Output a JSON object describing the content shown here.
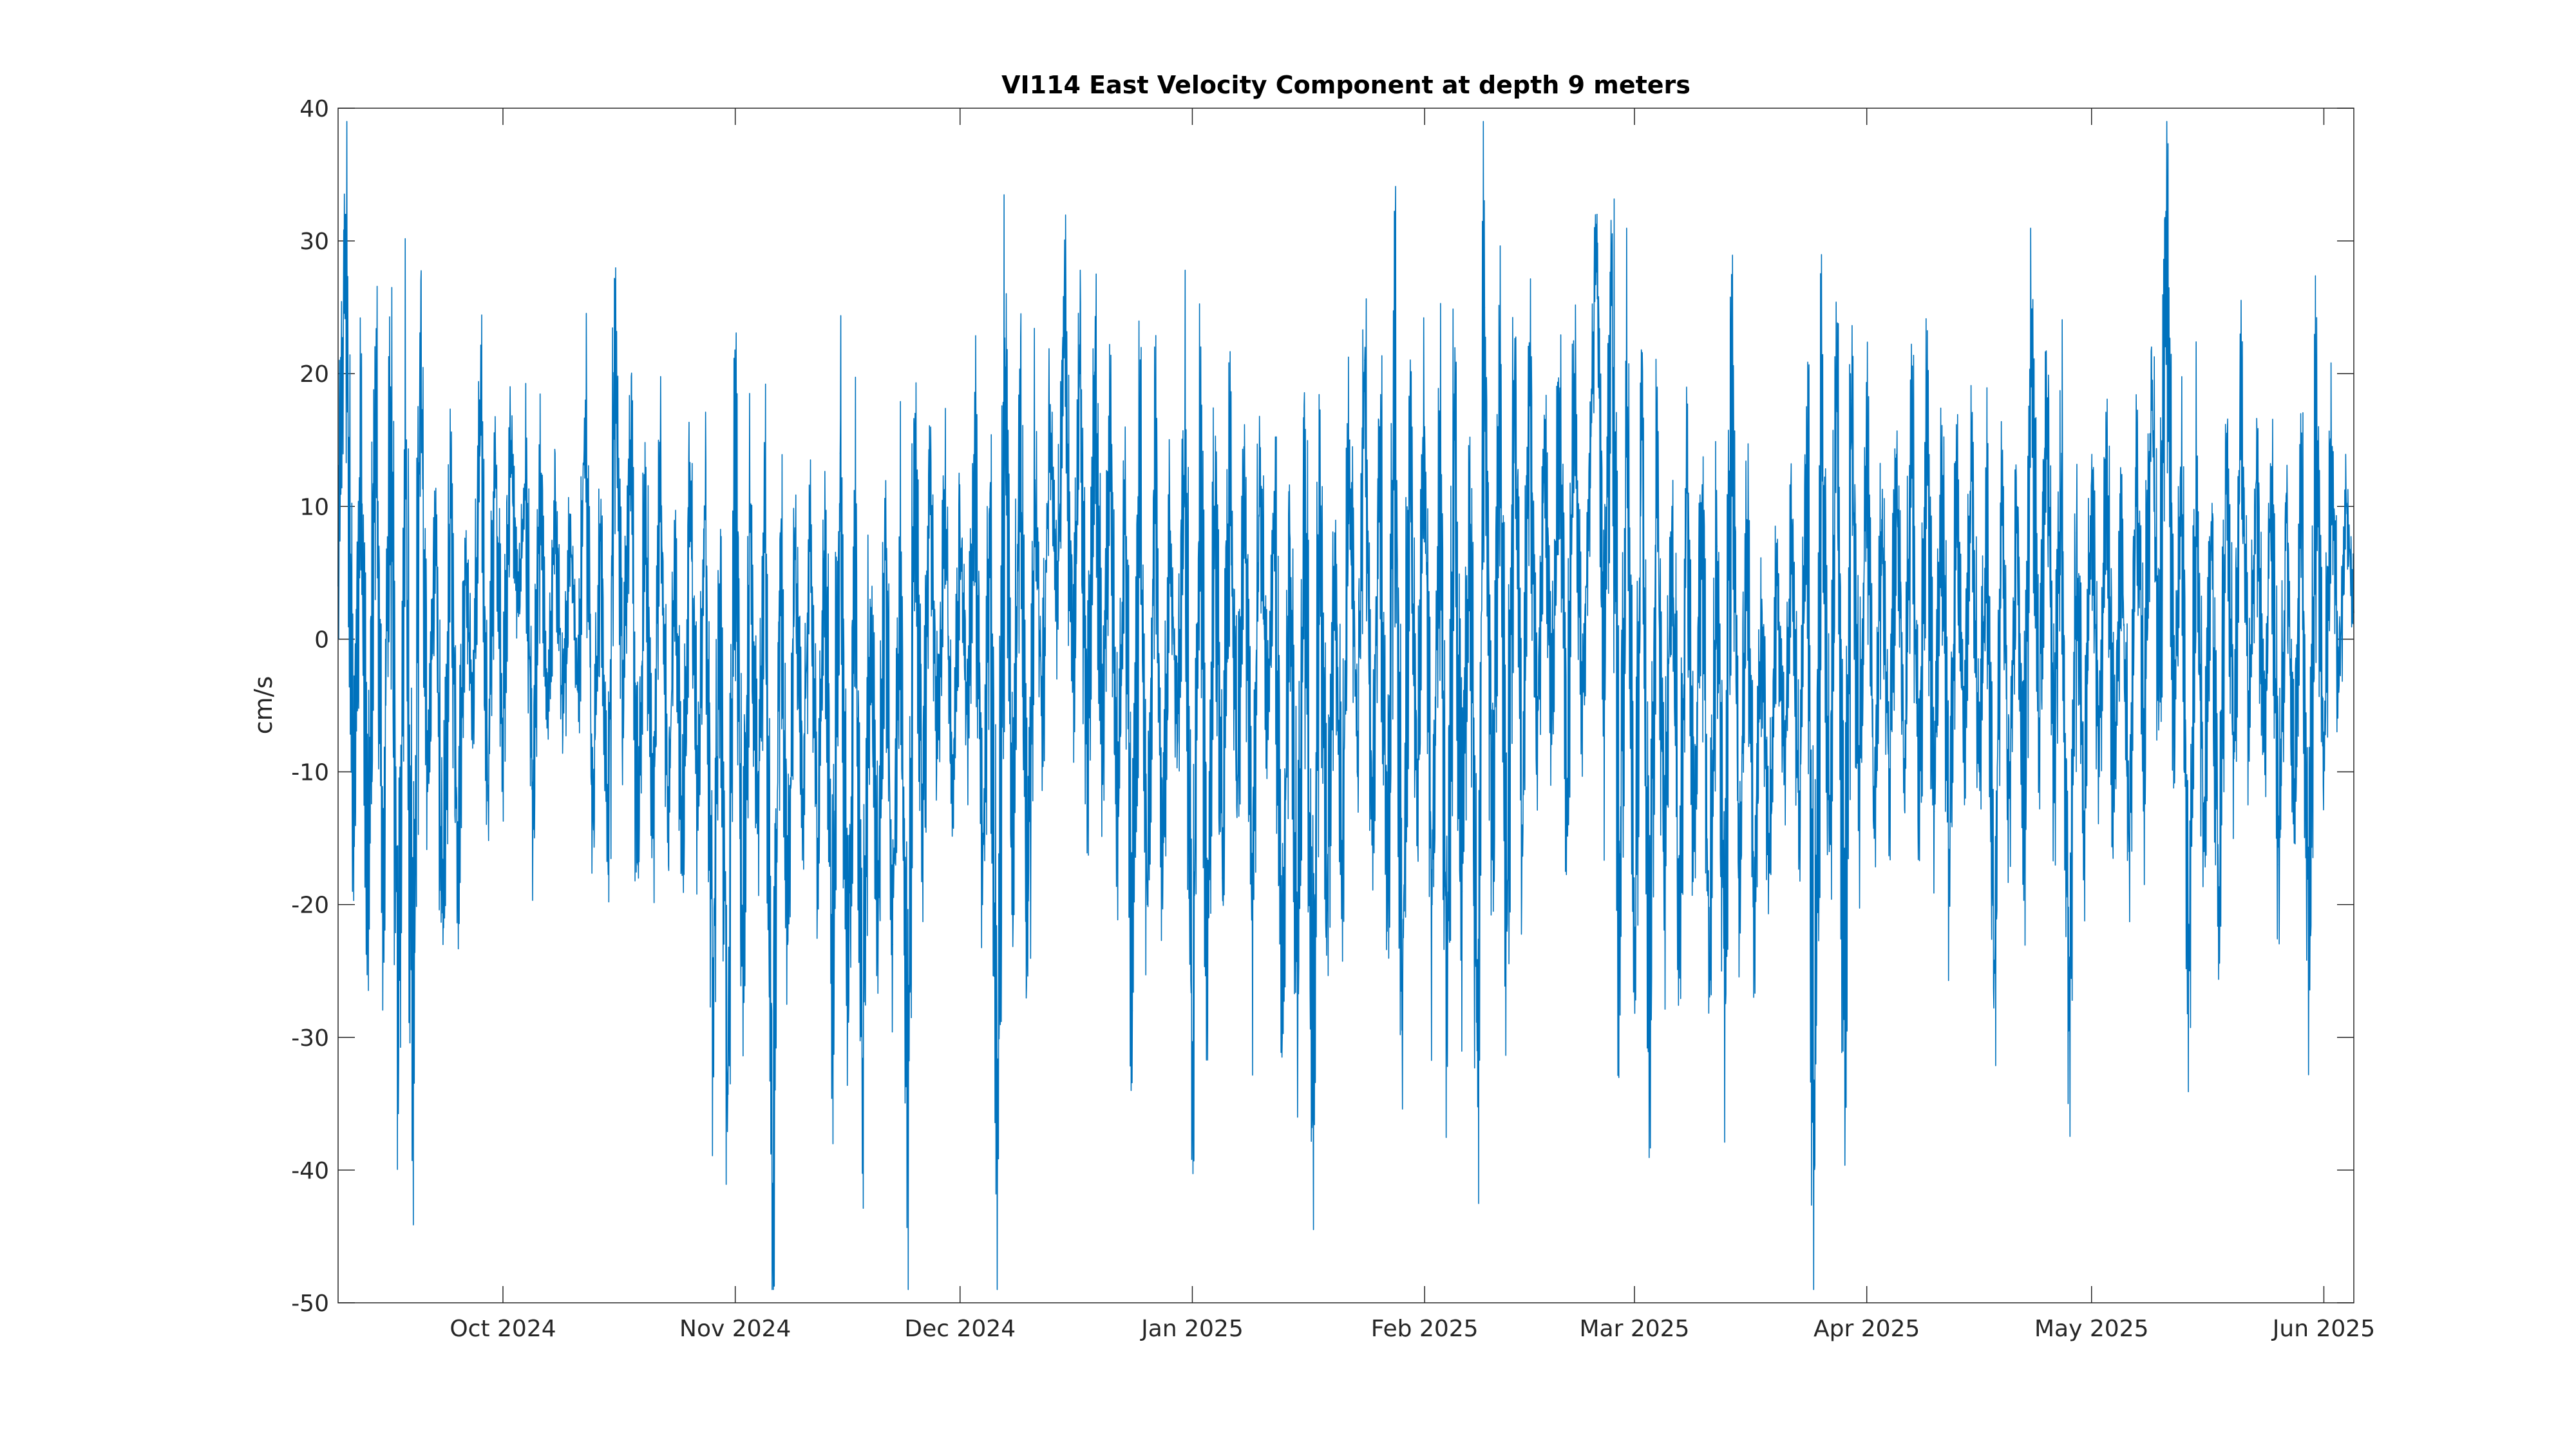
{
  "chart_data": {
    "type": "line",
    "title": "VI114 East Velocity Component at depth 9 meters",
    "xlabel": "",
    "ylabel": "cm/s",
    "xlim": [
      "2024-09-09",
      "2025-06-05"
    ],
    "ylim": [
      -50,
      40
    ],
    "yticks": [
      -50,
      -40,
      -30,
      -20,
      -10,
      0,
      10,
      20,
      30,
      40
    ],
    "xticks": [
      {
        "date": "2024-10-01",
        "label": "Oct 2024"
      },
      {
        "date": "2024-11-01",
        "label": "Nov 2024"
      },
      {
        "date": "2024-12-01",
        "label": "Dec 2024"
      },
      {
        "date": "2025-01-01",
        "label": "Jan 2025"
      },
      {
        "date": "2025-02-01",
        "label": "Feb 2025"
      },
      {
        "date": "2025-03-01",
        "label": "Mar 2025"
      },
      {
        "date": "2025-04-01",
        "label": "Apr 2025"
      },
      {
        "date": "2025-05-01",
        "label": "May 2025"
      },
      {
        "date": "2025-06-01",
        "label": "Jun 2025"
      }
    ],
    "grid": false,
    "line_color": "#0072BD",
    "series": [
      {
        "name": "",
        "points": [
          [
            "2024-09-09",
            4
          ],
          [
            "2024-09-10",
            32
          ],
          [
            "2024-09-11",
            -14
          ],
          [
            "2024-09-12",
            15
          ],
          [
            "2024-09-13",
            -21
          ],
          [
            "2024-09-14",
            18
          ],
          [
            "2024-09-15",
            -20
          ],
          [
            "2024-09-16",
            19
          ],
          [
            "2024-09-17",
            -29
          ],
          [
            "2024-09-18",
            14
          ],
          [
            "2024-09-19",
            -34
          ],
          [
            "2024-09-20",
            21
          ],
          [
            "2024-09-21",
            -10
          ],
          [
            "2024-09-22",
            8
          ],
          [
            "2024-09-23",
            -23
          ],
          [
            "2024-09-24",
            10
          ],
          [
            "2024-09-25",
            -16
          ],
          [
            "2024-09-26",
            7
          ],
          [
            "2024-09-27",
            -6
          ],
          [
            "2024-09-28",
            17
          ],
          [
            "2024-09-29",
            -11
          ],
          [
            "2024-09-30",
            14
          ],
          [
            "2024-10-01",
            -8
          ],
          [
            "2024-10-02",
            15
          ],
          [
            "2024-10-03",
            2
          ],
          [
            "2024-10-04",
            12
          ],
          [
            "2024-10-05",
            -14
          ],
          [
            "2024-10-06",
            11
          ],
          [
            "2024-10-07",
            -6
          ],
          [
            "2024-10-08",
            10
          ],
          [
            "2024-10-09",
            -7
          ],
          [
            "2024-10-10",
            9
          ],
          [
            "2024-10-11",
            -4
          ],
          [
            "2024-10-12",
            18
          ],
          [
            "2024-10-13",
            -12
          ],
          [
            "2024-10-14",
            8
          ],
          [
            "2024-10-15",
            -16
          ],
          [
            "2024-10-16",
            22
          ],
          [
            "2024-10-17",
            -3
          ],
          [
            "2024-10-18",
            15
          ],
          [
            "2024-10-19",
            -17
          ],
          [
            "2024-10-20",
            10
          ],
          [
            "2024-10-21",
            -15
          ],
          [
            "2024-10-22",
            13
          ],
          [
            "2024-10-23",
            -14
          ],
          [
            "2024-10-24",
            6
          ],
          [
            "2024-10-25",
            -16
          ],
          [
            "2024-10-26",
            11
          ],
          [
            "2024-10-27",
            -13
          ],
          [
            "2024-10-28",
            9
          ],
          [
            "2024-10-29",
            -26
          ],
          [
            "2024-10-30",
            4
          ],
          [
            "2024-10-31",
            -34
          ],
          [
            "2024-11-01",
            14
          ],
          [
            "2024-11-02",
            -22
          ],
          [
            "2024-11-03",
            9
          ],
          [
            "2024-11-04",
            -14
          ],
          [
            "2024-11-05",
            8
          ],
          [
            "2024-11-06",
            -41
          ],
          [
            "2024-11-07",
            8
          ],
          [
            "2024-11-08",
            -23
          ],
          [
            "2024-11-09",
            6
          ],
          [
            "2024-11-10",
            -12
          ],
          [
            "2024-11-11",
            7
          ],
          [
            "2024-11-12",
            -15
          ],
          [
            "2024-11-13",
            8
          ],
          [
            "2024-11-14",
            -26
          ],
          [
            "2024-11-15",
            14
          ],
          [
            "2024-11-16",
            -27
          ],
          [
            "2024-11-17",
            5
          ],
          [
            "2024-11-18",
            -32
          ],
          [
            "2024-11-19",
            3
          ],
          [
            "2024-11-20",
            -20
          ],
          [
            "2024-11-21",
            6
          ],
          [
            "2024-11-22",
            -23
          ],
          [
            "2024-11-23",
            4
          ],
          [
            "2024-11-24",
            -35
          ],
          [
            "2024-11-25",
            17
          ],
          [
            "2024-11-26",
            -15
          ],
          [
            "2024-11-27",
            12
          ],
          [
            "2024-11-28",
            -9
          ],
          [
            "2024-11-29",
            10
          ],
          [
            "2024-11-30",
            -12
          ],
          [
            "2024-12-01",
            8
          ],
          [
            "2024-12-02",
            -6
          ],
          [
            "2024-12-03",
            14
          ],
          [
            "2024-12-04",
            -20
          ],
          [
            "2024-12-05",
            11
          ],
          [
            "2024-12-06",
            -37
          ],
          [
            "2024-12-07",
            19
          ],
          [
            "2024-12-08",
            -15
          ],
          [
            "2024-12-09",
            16
          ],
          [
            "2024-12-10",
            -24
          ],
          [
            "2024-12-11",
            12
          ],
          [
            "2024-12-12",
            -6
          ],
          [
            "2024-12-13",
            16
          ],
          [
            "2024-12-14",
            2
          ],
          [
            "2024-12-15",
            27
          ],
          [
            "2024-12-16",
            -4
          ],
          [
            "2024-12-17",
            20
          ],
          [
            "2024-12-18",
            -12
          ],
          [
            "2024-12-19",
            20
          ],
          [
            "2024-12-20",
            -8
          ],
          [
            "2024-12-21",
            15
          ],
          [
            "2024-12-22",
            -14
          ],
          [
            "2024-12-23",
            9
          ],
          [
            "2024-12-24",
            -28
          ],
          [
            "2024-12-25",
            13
          ],
          [
            "2024-12-26",
            -20
          ],
          [
            "2024-12-27",
            14
          ],
          [
            "2024-12-28",
            -18
          ],
          [
            "2024-12-29",
            7
          ],
          [
            "2024-12-30",
            -8
          ],
          [
            "2024-12-31",
            15
          ],
          [
            "2025-01-01",
            -34
          ],
          [
            "2025-01-02",
            14
          ],
          [
            "2025-01-03",
            -24
          ],
          [
            "2025-01-04",
            10
          ],
          [
            "2025-01-05",
            -18
          ],
          [
            "2025-01-06",
            13
          ],
          [
            "2025-01-07",
            -12
          ],
          [
            "2025-01-08",
            12
          ],
          [
            "2025-01-09",
            -21
          ],
          [
            "2025-01-10",
            14
          ],
          [
            "2025-01-11",
            -6
          ],
          [
            "2025-01-12",
            10
          ],
          [
            "2025-01-13",
            -30
          ],
          [
            "2025-01-14",
            8
          ],
          [
            "2025-01-15",
            -25
          ],
          [
            "2025-01-16",
            12
          ],
          [
            "2025-01-17",
            -36
          ],
          [
            "2025-01-18",
            10
          ],
          [
            "2025-01-19",
            -20
          ],
          [
            "2025-01-20",
            8
          ],
          [
            "2025-01-21",
            -17
          ],
          [
            "2025-01-22",
            15
          ],
          [
            "2025-01-23",
            -10
          ],
          [
            "2025-01-24",
            21
          ],
          [
            "2025-01-25",
            -14
          ],
          [
            "2025-01-26",
            16
          ],
          [
            "2025-01-27",
            -22
          ],
          [
            "2025-01-28",
            22
          ],
          [
            "2025-01-29",
            -29
          ],
          [
            "2025-01-30",
            14
          ],
          [
            "2025-01-31",
            -12
          ],
          [
            "2025-02-01",
            16
          ],
          [
            "2025-02-02",
            -20
          ],
          [
            "2025-02-03",
            13
          ],
          [
            "2025-02-04",
            -28
          ],
          [
            "2025-02-05",
            15
          ],
          [
            "2025-02-06",
            -19
          ],
          [
            "2025-02-07",
            11
          ],
          [
            "2025-02-08",
            -31
          ],
          [
            "2025-02-09",
            25
          ],
          [
            "2025-02-10",
            -16
          ],
          [
            "2025-02-11",
            17
          ],
          [
            "2025-02-12",
            -22
          ],
          [
            "2025-02-13",
            20
          ],
          [
            "2025-02-14",
            -14
          ],
          [
            "2025-02-15",
            19
          ],
          [
            "2025-02-16",
            -8
          ],
          [
            "2025-02-17",
            15
          ],
          [
            "2025-02-18",
            -6
          ],
          [
            "2025-02-19",
            18
          ],
          [
            "2025-02-20",
            -11
          ],
          [
            "2025-02-21",
            20
          ],
          [
            "2025-02-22",
            -5
          ],
          [
            "2025-02-23",
            12
          ],
          [
            "2025-02-24",
            32
          ],
          [
            "2025-02-25",
            -3
          ],
          [
            "2025-02-26",
            28
          ],
          [
            "2025-02-27",
            -22
          ],
          [
            "2025-02-28",
            17
          ],
          [
            "2025-03-01",
            -25
          ],
          [
            "2025-03-02",
            15
          ],
          [
            "2025-03-03",
            -27
          ],
          [
            "2025-03-04",
            12
          ],
          [
            "2025-03-05",
            -18
          ],
          [
            "2025-03-06",
            10
          ],
          [
            "2025-03-07",
            -22
          ],
          [
            "2025-03-08",
            11
          ],
          [
            "2025-03-09",
            -16
          ],
          [
            "2025-03-10",
            10
          ],
          [
            "2025-03-11",
            -25
          ],
          [
            "2025-03-12",
            7
          ],
          [
            "2025-03-13",
            -24
          ],
          [
            "2025-03-14",
            23
          ],
          [
            "2025-03-15",
            -18
          ],
          [
            "2025-03-16",
            9
          ],
          [
            "2025-03-17",
            -20
          ],
          [
            "2025-03-18",
            3
          ],
          [
            "2025-03-19",
            -17
          ],
          [
            "2025-03-20",
            5
          ],
          [
            "2025-03-21",
            -10
          ],
          [
            "2025-03-22",
            9
          ],
          [
            "2025-03-23",
            -14
          ],
          [
            "2025-03-24",
            14
          ],
          [
            "2025-03-25",
            -39
          ],
          [
            "2025-03-26",
            17
          ],
          [
            "2025-03-27",
            -16
          ],
          [
            "2025-03-28",
            19
          ],
          [
            "2025-03-29",
            -28
          ],
          [
            "2025-03-30",
            18
          ],
          [
            "2025-03-31",
            -12
          ],
          [
            "2025-04-01",
            16
          ],
          [
            "2025-04-02",
            -15
          ],
          [
            "2025-04-03",
            9
          ],
          [
            "2025-04-04",
            -11
          ],
          [
            "2025-04-05",
            13
          ],
          [
            "2025-04-06",
            -9
          ],
          [
            "2025-04-07",
            16
          ],
          [
            "2025-04-08",
            -14
          ],
          [
            "2025-04-09",
            15
          ],
          [
            "2025-04-10",
            -13
          ],
          [
            "2025-04-11",
            12
          ],
          [
            "2025-04-12",
            -16
          ],
          [
            "2025-04-13",
            11
          ],
          [
            "2025-04-14",
            -8
          ],
          [
            "2025-04-15",
            13
          ],
          [
            "2025-04-16",
            -10
          ],
          [
            "2025-04-17",
            9
          ],
          [
            "2025-04-18",
            -25
          ],
          [
            "2025-04-19",
            11
          ],
          [
            "2025-04-20",
            -12
          ],
          [
            "2025-04-21",
            8
          ],
          [
            "2025-04-22",
            -13
          ],
          [
            "2025-04-23",
            22
          ],
          [
            "2025-04-24",
            -6
          ],
          [
            "2025-04-25",
            18
          ],
          [
            "2025-04-26",
            -11
          ],
          [
            "2025-04-27",
            14
          ],
          [
            "2025-04-28",
            -29
          ],
          [
            "2025-04-29",
            8
          ],
          [
            "2025-04-30",
            -14
          ],
          [
            "2025-05-01",
            12
          ],
          [
            "2025-05-02",
            -9
          ],
          [
            "2025-05-03",
            13
          ],
          [
            "2025-05-04",
            -12
          ],
          [
            "2025-05-05",
            10
          ],
          [
            "2025-05-06",
            -16
          ],
          [
            "2025-05-07",
            15
          ],
          [
            "2025-05-08",
            -8
          ],
          [
            "2025-05-09",
            22
          ],
          [
            "2025-05-10",
            -5
          ],
          [
            "2025-05-11",
            31
          ],
          [
            "2025-05-12",
            -6
          ],
          [
            "2025-05-13",
            12
          ],
          [
            "2025-05-14",
            -23
          ],
          [
            "2025-05-15",
            10
          ],
          [
            "2025-05-16",
            -16
          ],
          [
            "2025-05-17",
            8
          ],
          [
            "2025-05-18",
            -21
          ],
          [
            "2025-05-19",
            14
          ],
          [
            "2025-05-20",
            -9
          ],
          [
            "2025-05-21",
            17
          ],
          [
            "2025-05-22",
            -6
          ],
          [
            "2025-05-23",
            12
          ],
          [
            "2025-05-24",
            -8
          ],
          [
            "2025-05-25",
            13
          ],
          [
            "2025-05-26",
            -17
          ],
          [
            "2025-05-27",
            11
          ],
          [
            "2025-05-28",
            -12
          ],
          [
            "2025-05-29",
            10
          ],
          [
            "2025-05-30",
            -23
          ],
          [
            "2025-05-31",
            17
          ],
          [
            "2025-06-01",
            -9
          ],
          [
            "2025-06-02",
            14
          ],
          [
            "2025-06-03",
            -4
          ],
          [
            "2025-06-04",
            10
          ],
          [
            "2025-06-05",
            2
          ]
        ]
      }
    ]
  }
}
